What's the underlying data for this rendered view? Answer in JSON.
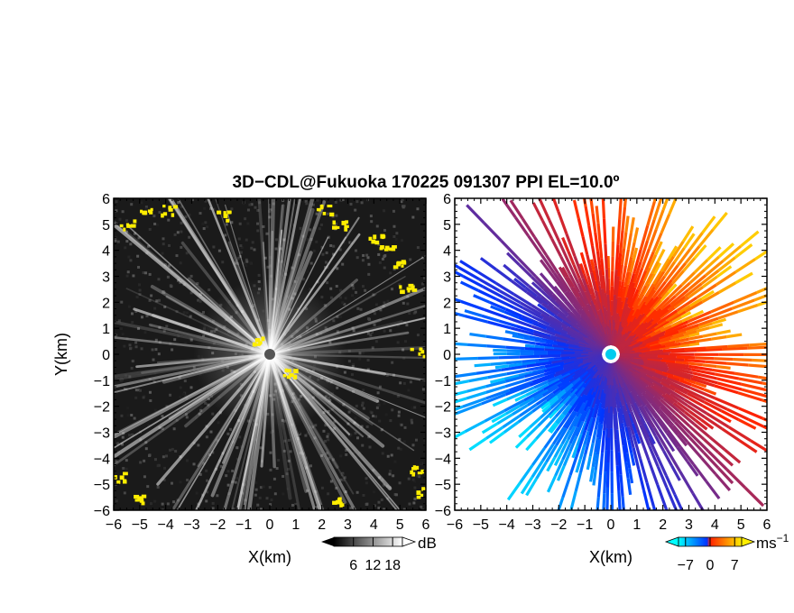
{
  "figure": {
    "title": "3D−CDL@Fukuoka 170225 091307 PPI EL=10.0º"
  },
  "chart_data": [
    {
      "type": "heatmap",
      "panel": "left",
      "xlabel": "X(km)",
      "ylabel": "Y(km)",
      "xlim": [
        -6,
        6
      ],
      "ylim": [
        -6,
        6
      ],
      "xticks": [
        "−6",
        "−5",
        "−4",
        "−3",
        "−2",
        "−1",
        "0",
        "1",
        "2",
        "3",
        "4",
        "5",
        "6"
      ],
      "yticks": [
        "−6",
        "−5",
        "−4",
        "−3",
        "−2",
        "−1",
        "0",
        "1",
        "2",
        "3",
        "4",
        "5",
        "6"
      ],
      "colorbar": {
        "unit": "dB",
        "ticks": [
          "6",
          "12",
          "18"
        ],
        "tick_values": [
          6,
          12,
          18
        ],
        "range": [
          0,
          21
        ],
        "colormap": "grayscale",
        "extend": "both"
      },
      "highlight_color": "#ffee00",
      "center_marker_color": "#555555"
    },
    {
      "type": "heatmap",
      "panel": "right",
      "xlabel": "X(km)",
      "ylabel": "",
      "xlim": [
        -6,
        6
      ],
      "ylim": [
        -6,
        6
      ],
      "xticks": [
        "−6",
        "−5",
        "−4",
        "−3",
        "−2",
        "−1",
        "0",
        "1",
        "2",
        "3",
        "4",
        "5",
        "6"
      ],
      "yticks": [
        "−6",
        "−5",
        "−4",
        "−3",
        "−2",
        "−1",
        "0",
        "1",
        "2",
        "3",
        "4",
        "5",
        "6"
      ],
      "colorbar": {
        "unit": "ms",
        "unit_exponent": "−1",
        "ticks": [
          "−7",
          "0",
          "7"
        ],
        "tick_values": [
          -7,
          0,
          7
        ],
        "range": [
          -9,
          9
        ],
        "colormap": [
          "#00ffff",
          "#0033ff",
          "#ff2200",
          "#ffee00"
        ],
        "extend": "both"
      },
      "center_marker_color": "#00ccee"
    }
  ]
}
